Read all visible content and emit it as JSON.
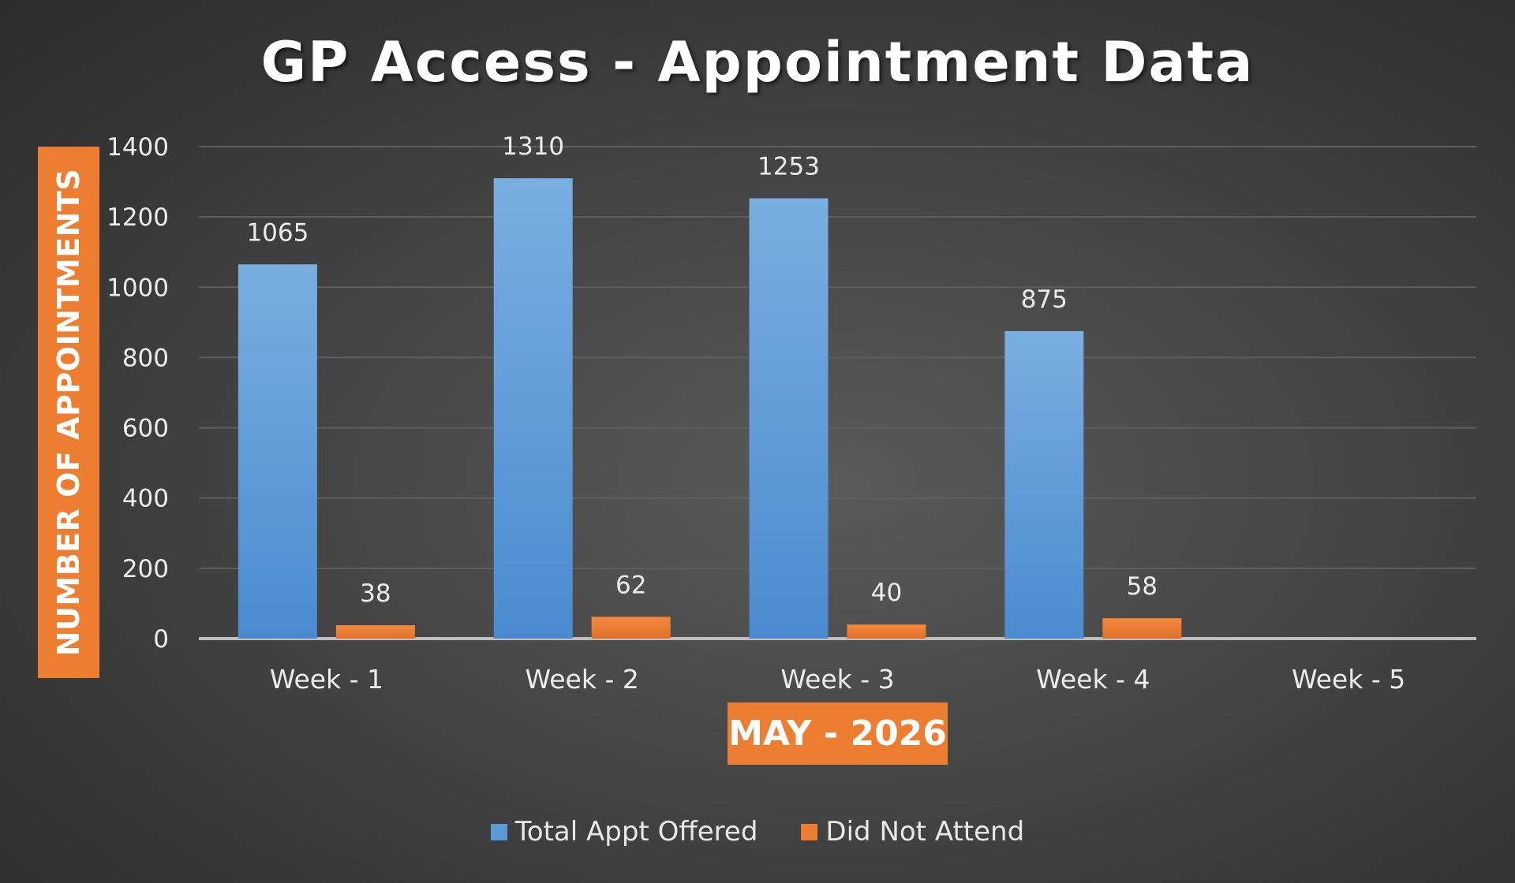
{
  "chart_data": {
    "type": "bar",
    "title": "GP Access - Appointment Data",
    "xlabel": "MAY - 2026",
    "ylabel": "NUMBER OF APPOINTMENTS",
    "categories": [
      "Week - 1",
      "Week - 2",
      "Week - 3",
      "Week - 4",
      "Week - 5"
    ],
    "series": [
      {
        "name": "Total Appt Offered",
        "color": "#5b9bd5",
        "values": [
          1065,
          1310,
          1253,
          875,
          null
        ],
        "labels": [
          "1065",
          "1310",
          "1253",
          "875",
          ""
        ]
      },
      {
        "name": "Did Not Attend",
        "color": "#ed7d31",
        "values": [
          38,
          62,
          40,
          58,
          null
        ],
        "labels": [
          "38",
          "62",
          "40",
          "58",
          ""
        ]
      }
    ],
    "ylim": [
      0,
      1400
    ],
    "yticks": [
      0,
      200,
      400,
      600,
      800,
      1000,
      1200,
      1400
    ],
    "grid": true,
    "legend": "bottom"
  }
}
